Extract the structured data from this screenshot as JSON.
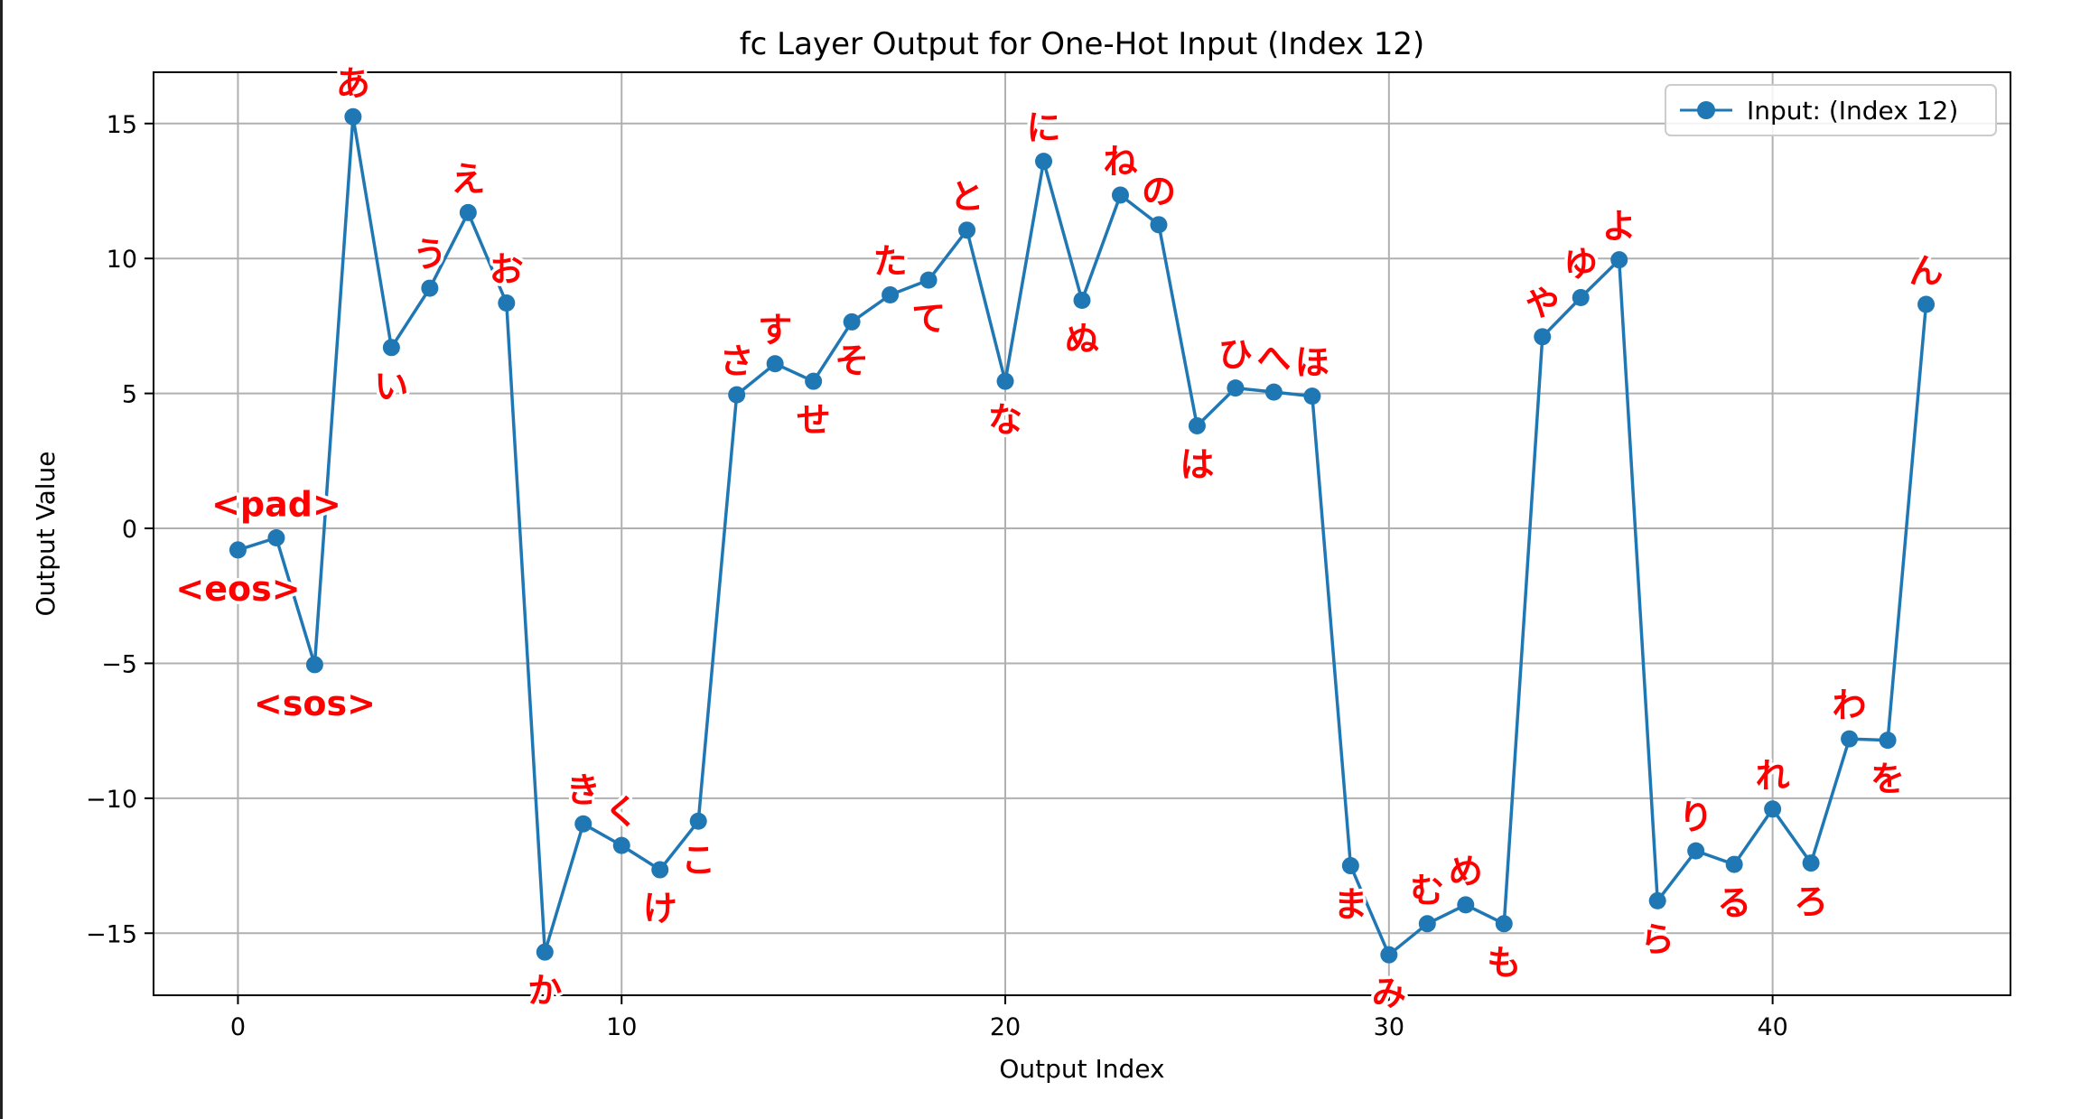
{
  "chart_data": {
    "type": "line",
    "title": "fc Layer Output for One-Hot Input (Index 12)",
    "xlabel": "Output Index",
    "ylabel": "Output Value",
    "xlim": [
      -2.2,
      46.2
    ],
    "ylim": [
      -17.3,
      16.9
    ],
    "xticks": [
      0,
      10,
      20,
      30,
      40
    ],
    "yticks": [
      15,
      10,
      5,
      0,
      -5,
      -10,
      -15
    ],
    "xtick_labels": [
      "0",
      "10",
      "20",
      "30",
      "40"
    ],
    "ytick_labels": [
      "15",
      "10",
      "5",
      "0",
      "−5",
      "−10",
      "−15"
    ],
    "grid": true,
    "legend_position": "top-right",
    "colors": {
      "series": "#1f77b4",
      "annotation": "#ff0000",
      "grid": "#b0b0b0"
    },
    "series": [
      {
        "name": "Input: (Index 12)",
        "marker": "circle",
        "x": [
          0,
          1,
          2,
          3,
          4,
          5,
          6,
          7,
          8,
          9,
          10,
          11,
          12,
          13,
          14,
          15,
          16,
          17,
          18,
          19,
          20,
          21,
          22,
          23,
          24,
          25,
          26,
          27,
          28,
          29,
          30,
          31,
          32,
          33,
          34,
          35,
          36,
          37,
          38,
          39,
          40,
          41,
          42,
          43,
          44
        ],
        "y": [
          -0.8,
          -0.35,
          -5.05,
          15.25,
          6.7,
          8.9,
          11.7,
          8.35,
          -15.7,
          -10.95,
          -11.75,
          -12.65,
          -10.85,
          4.95,
          6.1,
          5.45,
          7.65,
          8.65,
          9.2,
          11.05,
          5.45,
          13.6,
          8.45,
          12.35,
          11.25,
          3.8,
          5.2,
          5.05,
          4.9,
          -12.5,
          -15.8,
          -14.65,
          -13.95,
          -14.65,
          7.1,
          8.55,
          9.95,
          -13.8,
          -11.95,
          -12.45,
          -10.4,
          -12.4,
          -7.8,
          -7.85,
          8.3
        ]
      }
    ],
    "annotations": [
      {
        "x": 1,
        "y": -0.35,
        "label": "<pad>",
        "pos": "above"
      },
      {
        "x": 0,
        "y": -0.8,
        "label": "<eos>",
        "pos": "below"
      },
      {
        "x": 2,
        "y": -5.05,
        "label": "<sos>",
        "pos": "below"
      },
      {
        "x": 3,
        "y": 15.25,
        "label": "あ",
        "pos": "above"
      },
      {
        "x": 4,
        "y": 6.7,
        "label": "い",
        "pos": "below"
      },
      {
        "x": 5,
        "y": 8.9,
        "label": "う",
        "pos": "above"
      },
      {
        "x": 6,
        "y": 11.7,
        "label": "え",
        "pos": "above"
      },
      {
        "x": 7,
        "y": 8.35,
        "label": "お",
        "pos": "above"
      },
      {
        "x": 8,
        "y": -15.7,
        "label": "か",
        "pos": "below"
      },
      {
        "x": 9,
        "y": -10.95,
        "label": "き",
        "pos": "above"
      },
      {
        "x": 10,
        "y": -11.75,
        "label": "く",
        "pos": "above"
      },
      {
        "x": 11,
        "y": -12.65,
        "label": "け",
        "pos": "below"
      },
      {
        "x": 12,
        "y": -10.85,
        "label": "こ",
        "pos": "below"
      },
      {
        "x": 13,
        "y": 4.95,
        "label": "さ",
        "pos": "above"
      },
      {
        "x": 14,
        "y": 6.1,
        "label": "す",
        "pos": "above"
      },
      {
        "x": 15,
        "y": 5.45,
        "label": "せ",
        "pos": "below"
      },
      {
        "x": 16,
        "y": 7.65,
        "label": "そ",
        "pos": "below"
      },
      {
        "x": 17,
        "y": 8.65,
        "label": "た",
        "pos": "above"
      },
      {
        "x": 18,
        "y": 9.2,
        "label": "て",
        "pos": "below"
      },
      {
        "x": 19,
        "y": 11.05,
        "label": "と",
        "pos": "above"
      },
      {
        "x": 20,
        "y": 5.45,
        "label": "な",
        "pos": "below"
      },
      {
        "x": 21,
        "y": 13.6,
        "label": "に",
        "pos": "above"
      },
      {
        "x": 22,
        "y": 8.45,
        "label": "ぬ",
        "pos": "below"
      },
      {
        "x": 23,
        "y": 12.35,
        "label": "ね",
        "pos": "above"
      },
      {
        "x": 24,
        "y": 11.25,
        "label": "の",
        "pos": "above"
      },
      {
        "x": 25,
        "y": 3.8,
        "label": "は",
        "pos": "below"
      },
      {
        "x": 26,
        "y": 5.2,
        "label": "ひ",
        "pos": "above"
      },
      {
        "x": 27,
        "y": 5.05,
        "label": "へ",
        "pos": "above"
      },
      {
        "x": 28,
        "y": 4.9,
        "label": "ほ",
        "pos": "above"
      },
      {
        "x": 29,
        "y": -12.5,
        "label": "ま",
        "pos": "below"
      },
      {
        "x": 30,
        "y": -15.8,
        "label": "み",
        "pos": "below"
      },
      {
        "x": 31,
        "y": -14.65,
        "label": "む",
        "pos": "above"
      },
      {
        "x": 32,
        "y": -13.95,
        "label": "め",
        "pos": "above"
      },
      {
        "x": 33,
        "y": -14.65,
        "label": "も",
        "pos": "below"
      },
      {
        "x": 34,
        "y": 7.1,
        "label": "や",
        "pos": "above"
      },
      {
        "x": 35,
        "y": 8.55,
        "label": "ゆ",
        "pos": "above"
      },
      {
        "x": 36,
        "y": 9.95,
        "label": "よ",
        "pos": "above"
      },
      {
        "x": 37,
        "y": -13.8,
        "label": "ら",
        "pos": "below"
      },
      {
        "x": 38,
        "y": -11.95,
        "label": "り",
        "pos": "above"
      },
      {
        "x": 39,
        "y": -12.45,
        "label": "る",
        "pos": "below"
      },
      {
        "x": 40,
        "y": -10.4,
        "label": "れ",
        "pos": "above"
      },
      {
        "x": 41,
        "y": -12.4,
        "label": "ろ",
        "pos": "below"
      },
      {
        "x": 42,
        "y": -7.8,
        "label": "わ",
        "pos": "above"
      },
      {
        "x": 43,
        "y": -7.85,
        "label": "を",
        "pos": "below"
      },
      {
        "x": 44,
        "y": 8.3,
        "label": "ん",
        "pos": "above"
      }
    ]
  }
}
